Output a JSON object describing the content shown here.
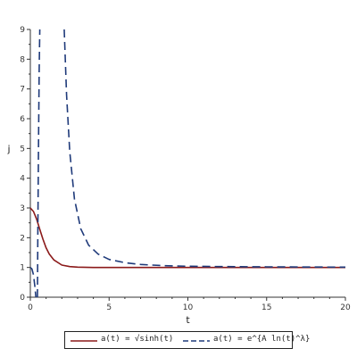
{
  "chart_data": {
    "type": "line",
    "xlabel": "t",
    "ylabel": "j",
    "xlim": [
      0,
      20
    ],
    "ylim": [
      0,
      9
    ],
    "xticks": [
      "0",
      "5",
      "10",
      "15",
      "20"
    ],
    "yticks": [
      "0",
      "1",
      "2",
      "3",
      "4",
      "5",
      "6",
      "7",
      "8",
      "9"
    ],
    "grid": false,
    "legend_position": "bottom",
    "series": [
      {
        "name": "a(t) = √sinh(t)",
        "color": "#8b1a1a",
        "style": "solid",
        "x": [
          0.0,
          0.2,
          0.4,
          0.6,
          0.8,
          1.0,
          1.2,
          1.5,
          2.0,
          2.5,
          3.0,
          4.0,
          5.0,
          8.0,
          12.0,
          16.0,
          20.0
        ],
        "y": [
          3.0,
          2.88,
          2.62,
          2.28,
          1.95,
          1.66,
          1.45,
          1.25,
          1.08,
          1.03,
          1.01,
          1.0,
          1.0,
          1.0,
          1.0,
          1.0,
          1.0
        ]
      },
      {
        "name": "a(t) = e^{A ln(t)^λ}",
        "color": "#1f3a7a",
        "style": "dashed",
        "segments": [
          {
            "x": [
              0.0,
              0.1,
              0.2,
              0.3,
              0.35
            ],
            "y": [
              1.0,
              0.95,
              0.75,
              0.3,
              0.0
            ]
          },
          {
            "x": [
              0.45,
              0.48,
              0.52,
              0.56,
              0.6
            ],
            "y": [
              0.0,
              2.5,
              5.2,
              7.6,
              9.0
            ]
          },
          {
            "x": [
              2.15,
              2.3,
              2.5,
              2.8,
              3.2,
              3.7,
              4.3,
              5.0,
              6.0,
              7.0,
              8.5,
              10.0,
              12.0,
              15.0,
              20.0
            ],
            "y": [
              9.0,
              6.8,
              4.9,
              3.3,
              2.3,
              1.75,
              1.45,
              1.27,
              1.16,
              1.1,
              1.06,
              1.04,
              1.03,
              1.02,
              1.01
            ]
          }
        ]
      }
    ]
  },
  "legend": {
    "item1": "a(t) = √sinh(t)",
    "item2": "a(t) = e^{A ln(t)^λ}"
  }
}
